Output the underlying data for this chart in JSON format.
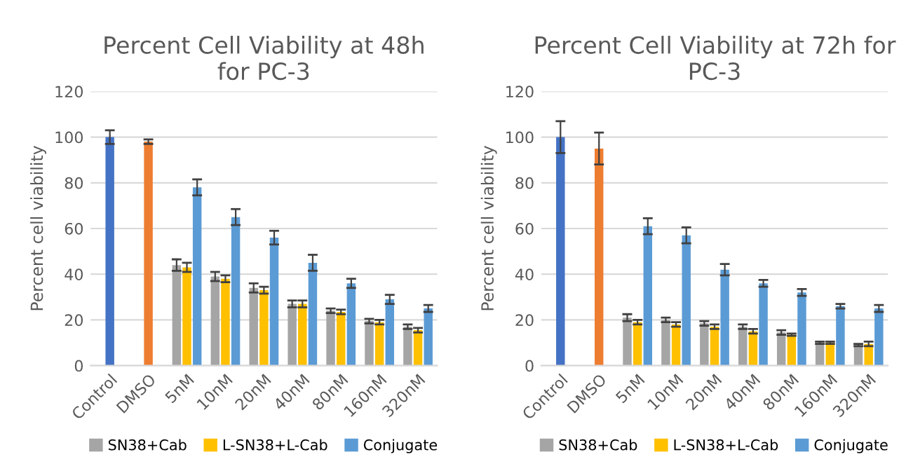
{
  "chart_data": [
    {
      "type": "bar",
      "title": "Percent Cell Viability at 48h\nfor PC-3",
      "ylabel": "Percent cell viability",
      "categories": [
        "Control",
        "DMSO",
        "5nM",
        "10nM",
        "20nM",
        "40nM",
        "80nM",
        "160nM",
        "320nM"
      ],
      "series": [
        {
          "colors": [
            "#4472c4",
            "#ed7d31",
            null,
            null,
            null,
            null,
            null,
            null,
            null
          ],
          "values": [
            100,
            98,
            null,
            null,
            null,
            null,
            null,
            null,
            null
          ],
          "errors": [
            3,
            1,
            null,
            null,
            null,
            null,
            null,
            null,
            null
          ]
        },
        {
          "name": "SN38+Cab",
          "color": "#a5a5a5",
          "values": [
            null,
            null,
            44,
            39,
            34,
            27,
            24,
            19.5,
            17
          ],
          "errors": [
            null,
            null,
            2.5,
            2,
            2,
            1.5,
            1,
            1,
            1
          ]
        },
        {
          "name": "L-SN38+L-Cab",
          "color": "#ffc000",
          "values": [
            null,
            null,
            43,
            38,
            33,
            27,
            23.5,
            19,
            15.5
          ],
          "errors": [
            null,
            null,
            2,
            1.5,
            1.5,
            1.5,
            1,
            1,
            1
          ]
        },
        {
          "name": "Conjugate",
          "color": "#5b9bd5",
          "values": [
            null,
            null,
            78,
            65,
            56,
            45,
            36,
            29,
            25
          ],
          "errors": [
            null,
            null,
            3.5,
            3.5,
            3,
            3.5,
            2,
            2,
            1.5
          ]
        }
      ],
      "ylim": [
        0,
        120
      ],
      "yticks": [
        0,
        20,
        40,
        60,
        80,
        100,
        120
      ],
      "grid": "y",
      "legend": "bottom"
    },
    {
      "type": "bar",
      "title": "Percent Cell Viability at 72h for\nPC-3",
      "ylabel": "Percent cell viability",
      "categories": [
        "Control",
        "DMSO",
        "5nM",
        "10nM",
        "20nM",
        "40nM",
        "80nM",
        "160nM",
        "320nM"
      ],
      "series": [
        {
          "colors": [
            "#4472c4",
            "#ed7d31",
            null,
            null,
            null,
            null,
            null,
            null,
            null
          ],
          "values": [
            100,
            95,
            null,
            null,
            null,
            null,
            null,
            null,
            null
          ],
          "errors": [
            7,
            7,
            null,
            null,
            null,
            null,
            null,
            null,
            null
          ]
        },
        {
          "name": "SN38+Cab",
          "color": "#a5a5a5",
          "values": [
            null,
            null,
            21,
            20,
            18.5,
            17,
            14.5,
            10,
            9
          ],
          "errors": [
            null,
            null,
            1.5,
            1,
            1,
            1,
            1,
            0.5,
            0.5
          ]
        },
        {
          "name": "L-SN38+L-Cab",
          "color": "#ffc000",
          "values": [
            null,
            null,
            19,
            18,
            17,
            15,
            13.5,
            10,
            9.5
          ],
          "errors": [
            null,
            null,
            1,
            1,
            1,
            1,
            0.5,
            0.5,
            1
          ]
        },
        {
          "name": "Conjugate",
          "color": "#5b9bd5",
          "values": [
            null,
            null,
            61,
            57,
            42,
            36,
            32,
            26,
            25
          ],
          "errors": [
            null,
            null,
            3.5,
            3.5,
            2.5,
            1.5,
            1.5,
            1,
            1.5
          ]
        }
      ],
      "ylim": [
        0,
        120
      ],
      "yticks": [
        0,
        20,
        40,
        60,
        80,
        100,
        120
      ],
      "grid": "y",
      "legend": "bottom"
    }
  ]
}
